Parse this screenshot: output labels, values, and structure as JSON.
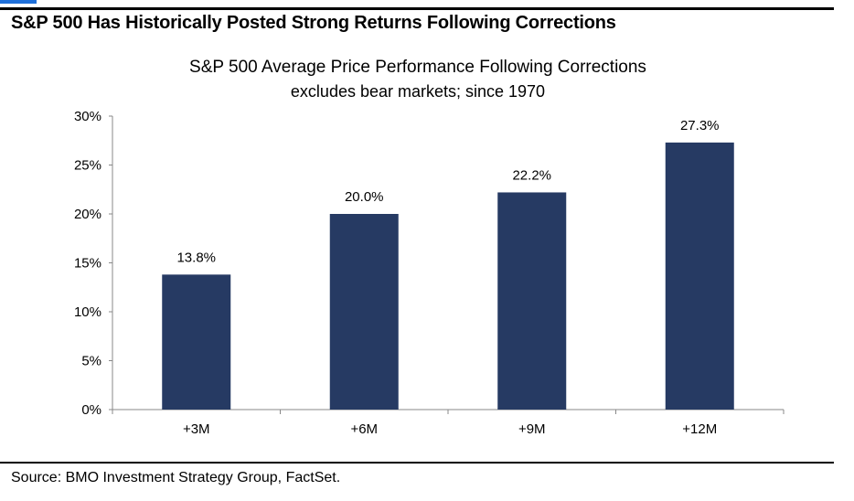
{
  "headline": "S&P 500 Has Historically Posted Strong Returns Following Corrections",
  "source": "Source: BMO Investment Strategy Group, FactSet.",
  "colors": {
    "bar": "#263a63",
    "axis": "#888888",
    "rule": "#000000",
    "accent": "#1e6fd9"
  },
  "chart_data": {
    "type": "bar",
    "title": "S&P 500 Average Price Performance Following Corrections",
    "subtitle": "excludes bear markets; since 1970",
    "categories": [
      "+3M",
      "+6M",
      "+9M",
      "+12M"
    ],
    "values": [
      13.8,
      20.0,
      22.2,
      27.3
    ],
    "value_labels": [
      "13.8%",
      "20.0%",
      "22.2%",
      "27.3%"
    ],
    "yticks": [
      0,
      5,
      10,
      15,
      20,
      25,
      30
    ],
    "ytick_labels": [
      "0%",
      "5%",
      "10%",
      "15%",
      "20%",
      "25%",
      "30%"
    ],
    "ylim": [
      0,
      30
    ],
    "grid": false,
    "legend": "none"
  }
}
